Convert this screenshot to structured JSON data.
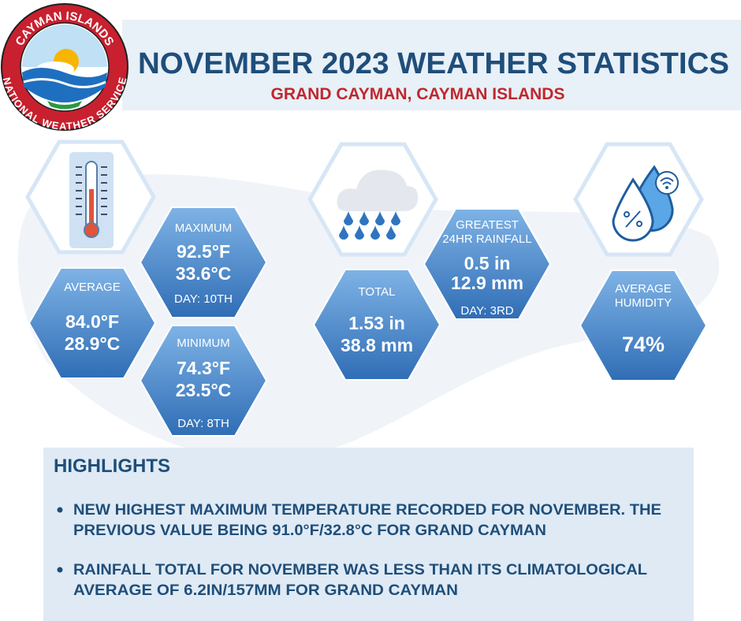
{
  "logo": {
    "top": "CAYMAN ISLANDS",
    "bottom": "NATIONAL WEATHER SERVICE"
  },
  "header": {
    "title": "NOVEMBER 2023 WEATHER STATISTICS",
    "subtitle": "GRAND CAYMAN, CAYMAN ISLANDS"
  },
  "temperature": {
    "average": {
      "label": "AVERAGE",
      "values": [
        "84.0°F",
        "28.9°C"
      ]
    },
    "maximum": {
      "label": "MAXIMUM",
      "values": [
        "92.5°F",
        "33.6°C"
      ],
      "day": "DAY: 10TH"
    },
    "minimum": {
      "label": "MINIMUM",
      "values": [
        "74.3°F",
        "23.5°C"
      ],
      "day": "DAY: 8TH"
    }
  },
  "rainfall": {
    "total": {
      "label": "TOTAL",
      "values": [
        "1.53 in",
        "38.8 mm"
      ]
    },
    "greatest": {
      "label": [
        "GREATEST",
        "24HR RAINFALL"
      ],
      "values": [
        "0.5 in",
        "12.9 mm"
      ],
      "day": "DAY: 3RD"
    }
  },
  "humidity": {
    "label": [
      "AVERAGE",
      "HUMIDITY"
    ],
    "value": "74%"
  },
  "highlights": {
    "title": "HIGHLIGHTS",
    "items": [
      [
        "NEW HIGHEST MAXIMUM TEMPERATURE RECORDED FOR NOVEMBER. THE",
        "PREVIOUS VALUE BEING 91.0°F/32.8°C FOR GRAND CAYMAN"
      ],
      [
        "RAINFALL TOTAL FOR NOVEMBER WAS LESS THAN ITS CLIMATOLOGICAL",
        "AVERAGE OF 6.2IN/157MM FOR GRAND CAYMAN"
      ]
    ]
  }
}
